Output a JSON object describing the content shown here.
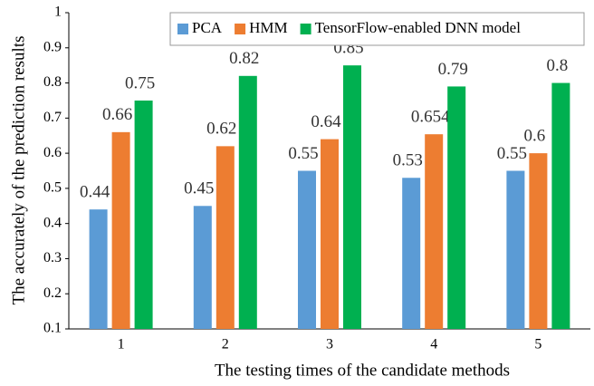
{
  "chart_data": {
    "type": "bar",
    "xlabel": "The testing times of the candidate methods",
    "ylabel": "The accurately of the prediction results",
    "categories": [
      "1",
      "2",
      "3",
      "4",
      "5"
    ],
    "series": [
      {
        "name": "PCA",
        "color": "#5b9bd5",
        "values": [
          0.44,
          0.45,
          0.55,
          0.53,
          0.55
        ]
      },
      {
        "name": "HMM",
        "color": "#ed7d31",
        "values": [
          0.66,
          0.62,
          0.64,
          0.654,
          0.6
        ]
      },
      {
        "name": "TensorFlow-enabled DNN model",
        "color": "#00b050",
        "values": [
          0.75,
          0.82,
          0.85,
          0.79,
          0.8
        ]
      }
    ],
    "ylim": [
      0.1,
      1
    ],
    "yticks": [
      0.1,
      0.2,
      0.3,
      0.4,
      0.5,
      0.6,
      0.7,
      0.8,
      0.9,
      1
    ],
    "grid": false,
    "legend": "top-right"
  }
}
